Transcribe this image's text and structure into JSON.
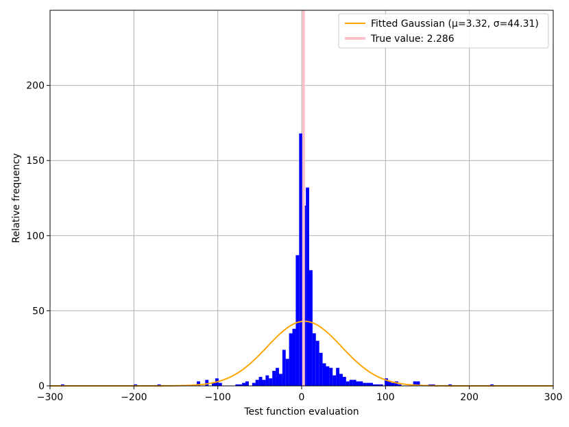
{
  "chart_data": {
    "type": "bar",
    "xlabel": "Test function evaluation",
    "ylabel": "Relative frequency",
    "xlim": [
      -300,
      300
    ],
    "ylim": [
      0,
      250
    ],
    "xticks": [
      -300,
      -200,
      -100,
      0,
      100,
      200,
      300
    ],
    "xtick_labels": [
      "−300",
      "−200",
      "−100",
      "0",
      "100",
      "200",
      "300"
    ],
    "yticks": [
      0,
      50,
      100,
      150,
      200
    ],
    "ytick_labels": [
      "0",
      "50",
      "100",
      "150",
      "200"
    ],
    "grid": true,
    "legend_position": "top-right",
    "bin_width": 4,
    "histogram": {
      "name": "",
      "color": "#0000ff",
      "bins": [
        {
          "x": -285,
          "y": 1
        },
        {
          "x": -198,
          "y": 1
        },
        {
          "x": -170,
          "y": 1
        },
        {
          "x": -123,
          "y": 3
        },
        {
          "x": -113,
          "y": 4
        },
        {
          "x": -105,
          "y": 2
        },
        {
          "x": -101,
          "y": 5
        },
        {
          "x": -97,
          "y": 2
        },
        {
          "x": -77,
          "y": 1
        },
        {
          "x": -73,
          "y": 1
        },
        {
          "x": -69,
          "y": 2
        },
        {
          "x": -65,
          "y": 3
        },
        {
          "x": -57,
          "y": 2
        },
        {
          "x": -53,
          "y": 4
        },
        {
          "x": -49,
          "y": 6
        },
        {
          "x": -45,
          "y": 4
        },
        {
          "x": -41,
          "y": 7
        },
        {
          "x": -37,
          "y": 5
        },
        {
          "x": -33,
          "y": 10
        },
        {
          "x": -29,
          "y": 12
        },
        {
          "x": -25,
          "y": 8
        },
        {
          "x": -21,
          "y": 24
        },
        {
          "x": -17,
          "y": 18
        },
        {
          "x": -13,
          "y": 35
        },
        {
          "x": -9,
          "y": 38
        },
        {
          "x": -5,
          "y": 87
        },
        {
          "x": -1,
          "y": 168
        },
        {
          "x": 3,
          "y": 120
        },
        {
          "x": 7,
          "y": 132
        },
        {
          "x": 11,
          "y": 77
        },
        {
          "x": 15,
          "y": 35
        },
        {
          "x": 19,
          "y": 30
        },
        {
          "x": 23,
          "y": 22
        },
        {
          "x": 27,
          "y": 15
        },
        {
          "x": 31,
          "y": 13
        },
        {
          "x": 35,
          "y": 12
        },
        {
          "x": 39,
          "y": 7
        },
        {
          "x": 43,
          "y": 12
        },
        {
          "x": 47,
          "y": 8
        },
        {
          "x": 51,
          "y": 6
        },
        {
          "x": 55,
          "y": 3
        },
        {
          "x": 59,
          "y": 4
        },
        {
          "x": 63,
          "y": 4
        },
        {
          "x": 67,
          "y": 3
        },
        {
          "x": 71,
          "y": 3
        },
        {
          "x": 75,
          "y": 2
        },
        {
          "x": 79,
          "y": 2
        },
        {
          "x": 83,
          "y": 2
        },
        {
          "x": 87,
          "y": 1
        },
        {
          "x": 91,
          "y": 1
        },
        {
          "x": 95,
          "y": 1
        },
        {
          "x": 101,
          "y": 5
        },
        {
          "x": 105,
          "y": 3
        },
        {
          "x": 109,
          "y": 2
        },
        {
          "x": 113,
          "y": 3
        },
        {
          "x": 117,
          "y": 1
        },
        {
          "x": 135,
          "y": 3
        },
        {
          "x": 139,
          "y": 3
        },
        {
          "x": 153,
          "y": 1
        },
        {
          "x": 157,
          "y": 1
        },
        {
          "x": 177,
          "y": 1
        },
        {
          "x": 227,
          "y": 1
        }
      ]
    },
    "fitted_curve": {
      "name": "Fitted Gaussian (μ=3.32, σ=44.31)",
      "color": "#ffa500",
      "mu": 3.32,
      "sigma": 44.31,
      "peak": 43
    },
    "true_value": {
      "name": "True value: 2.286",
      "x": 2.286,
      "color": "#ffc0cb"
    }
  }
}
